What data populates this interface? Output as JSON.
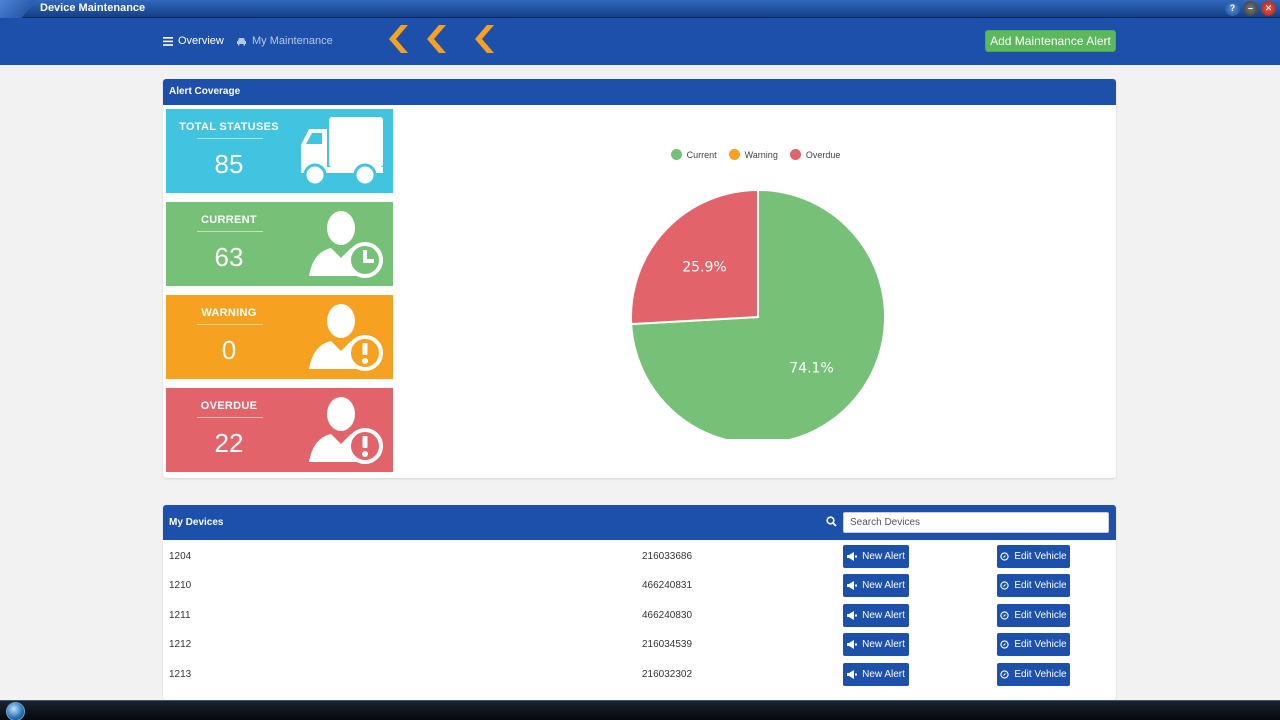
{
  "window": {
    "title": "Device Maintenance"
  },
  "nav": {
    "overview_label": "Overview",
    "maintenance_label": "My Maintenance",
    "add_alert_label": "Add Maintenance Alert"
  },
  "coverage": {
    "title": "Alert Coverage",
    "cards": {
      "total": {
        "label": "TOTAL STATUSES",
        "value": "85"
      },
      "current": {
        "label": "CURRENT",
        "value": "63"
      },
      "warning": {
        "label": "WARNING",
        "value": "0"
      },
      "overdue": {
        "label": "OVERDUE",
        "value": "22"
      }
    }
  },
  "chart_data": {
    "type": "pie",
    "categories": [
      "Current",
      "Warning",
      "Overdue"
    ],
    "values": [
      63,
      0,
      22
    ],
    "labels": [
      "74.1%",
      "",
      "25.9%"
    ],
    "colors": [
      "#76c077",
      "#f6a11f",
      "#e2636a"
    ],
    "legend": "top"
  },
  "devices": {
    "title": "My Devices",
    "search_placeholder": "Search Devices",
    "new_alert_label": "New Alert",
    "edit_vehicle_label": "Edit Vehicle",
    "rows": [
      {
        "id": "1204",
        "serial": "216033686"
      },
      {
        "id": "1210",
        "serial": "466240831"
      },
      {
        "id": "1211",
        "serial": "466240830"
      },
      {
        "id": "1212",
        "serial": "216034539"
      },
      {
        "id": "1213",
        "serial": "216032302"
      }
    ]
  },
  "colors": {
    "primary": "#1d50aa",
    "success": "#5cb85c",
    "accent_chevron": "#f6a11f"
  }
}
